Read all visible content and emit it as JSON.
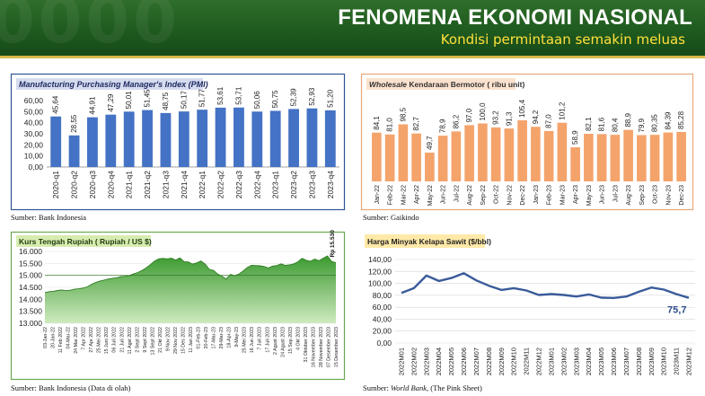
{
  "header": {
    "title": "FENOMENA EKONOMI NASIONAL",
    "subtitle": "Kondisi permintaan semakin meluas",
    "watermark": "0000"
  },
  "colors": {
    "header_green": "#1f5a1f",
    "gold": "#ffe03a",
    "pmi_bar": "#4472c4",
    "wholesale_bar": "#f4a36b",
    "kurs_fill": "#55b045",
    "cpo_line": "#3a5b9a"
  },
  "pmi": {
    "source_label": "Sumber:",
    "source_name": "Bank Indonesia"
  },
  "wholesale": {
    "source_label": "Sumber:",
    "source_name": "Gaikindo"
  },
  "kurs": {
    "source_label": "Sumber:",
    "source_name": "Bank Indonesia (Data di olah)"
  },
  "cpo": {
    "source_label": "Sumber:",
    "source_name_italic": "World Bank,",
    "source_name_rest": "(The Pink Sheet)"
  },
  "chart_data": [
    {
      "id": "pmi",
      "type": "bar",
      "title": "Manufacturing Purchasing Manager's Index (PMI)",
      "categories": [
        "2020-q1",
        "2020-q2",
        "2020-q3",
        "2020-q4",
        "2021-q1",
        "2021-q2",
        "2021-q3",
        "2021-q4",
        "2022-q1",
        "2022-q2",
        "2022-q3",
        "2022-q4",
        "2023-q1",
        "2023-q2",
        "2023-q3",
        "2023-q4"
      ],
      "values": [
        45.64,
        28.55,
        44.91,
        47.29,
        50.01,
        51.45,
        48.75,
        50.17,
        51.77,
        53.61,
        53.71,
        50.06,
        50.75,
        52.39,
        52.93,
        51.2
      ],
      "labels": [
        "45,64",
        "28,55",
        "44,91",
        "47,29",
        "50,01",
        "51,45",
        "48,75",
        "50,17",
        "51,77",
        "53,61",
        "53,71",
        "50,06",
        "50,75",
        "52,39",
        "52,93",
        "51,20"
      ],
      "ylim": [
        0,
        60
      ],
      "yticks": [
        "0,00",
        "10,00",
        "20,00",
        "30,00",
        "40,00",
        "50,00",
        "60,00"
      ],
      "grid": false
    },
    {
      "id": "wholesale",
      "type": "bar",
      "title_italic": "Wholesale",
      "title_rest": "Kendaraan Bermotor ( ribu unit)",
      "categories": [
        "Jan-22",
        "Feb-22",
        "Mar-22",
        "Apr-22",
        "May-22",
        "Jun-22",
        "Jul-22",
        "Aug-22",
        "Sep-22",
        "Oct-22",
        "Nov-22",
        "Dec-22",
        "Jan-23",
        "Feb-23",
        "Mar-23",
        "Apr-23",
        "May-23",
        "Jun-23",
        "Jul-23",
        "Aug-23",
        "Sep-23",
        "Oct-23",
        "Nov-23",
        "Dec-23"
      ],
      "values": [
        84.1,
        81.0,
        98.5,
        82.7,
        49.7,
        78.9,
        86.2,
        97.0,
        100.0,
        93.2,
        91.3,
        105.4,
        94.2,
        87.0,
        101.2,
        58.9,
        82.1,
        81.6,
        80.4,
        88.9,
        79.9,
        80.35,
        84.39,
        85.28
      ],
      "labels": [
        "84,1",
        "81,0",
        "98,5",
        "82,7",
        "49,7",
        "78,9",
        "86,2",
        "97,0",
        "100,0",
        "93,2",
        "91,3",
        "105,4",
        "94,2",
        "87,0",
        "101,2",
        "58,9",
        "82,1",
        "81,6",
        "80,4",
        "88,9",
        "79,9",
        "80,35",
        "84,39",
        "85,28"
      ],
      "grid": false
    },
    {
      "id": "kurs",
      "type": "area",
      "title": "Kurs Tengah Rupiah ( Rupiah / US $)",
      "ylim": [
        13000,
        16000
      ],
      "yticks": [
        "13.000",
        "13.500",
        "14.000",
        "14.500",
        "15.000",
        "15.500",
        "16.000"
      ],
      "x_labels": [
        "03-Jan-22",
        "20-Jan-22",
        "11 Feb 2022",
        "04-Mar-22",
        "24 Mar 2022",
        "7 Apr 2022",
        "27 Apr 2022",
        "25 Mei 2022",
        "15 Juni 2022",
        "06 Juli 2022",
        "21 Juli 2022",
        "11 Agst 2022",
        "2 Sept 2022",
        "9 Sept 2022",
        "13 Sept 2022",
        "21 Okt 2022",
        "9 Nov 2022",
        "29 Nov 2022",
        "15 Des 2022",
        "11 Jan 2023",
        "01-Feb-23",
        "20-Feb-23",
        "17-Mar-23",
        "29-Mar-23",
        "18-Apr-23",
        "9-May-23",
        "25 Mei 2023",
        "16 Jun 2023",
        "7 Juli 2023",
        "17 Juli 2023",
        "2 Agust 2023",
        "24 Agust 2023",
        "15 Sep 2023",
        "4 Okt 2023",
        "31 Oktober 2023",
        "16 November 2023",
        "28 November 2023",
        "07 Desember 2023",
        "15 Desember 2023"
      ],
      "values": [
        14280,
        14320,
        14330,
        14370,
        14390,
        14360,
        14380,
        14420,
        14440,
        14470,
        14520,
        14620,
        14700,
        14760,
        14800,
        14850,
        14880,
        14900,
        14950,
        14960,
        14990,
        15060,
        15120,
        15200,
        15310,
        15450,
        15600,
        15690,
        15710,
        15690,
        15720,
        15640,
        15730,
        15570,
        15560,
        15470,
        15520,
        15600,
        15470,
        15250,
        15210,
        15050,
        14960,
        14850,
        15040,
        14990,
        15050,
        15180,
        15330,
        15420,
        15410,
        15400,
        15370,
        15310,
        15390,
        15410,
        15480,
        15420,
        15440,
        15480,
        15570,
        15710,
        15630,
        15590,
        15680,
        15610,
        15720,
        15810,
        15580,
        15530
      ],
      "last_label": "Rp 15.530",
      "reference_line": 15000,
      "grid": true
    },
    {
      "id": "cpo",
      "type": "line",
      "title": "Harga Minyak Kelapa Sawit ($/bbl)",
      "categories": [
        "2022M01",
        "2022M02",
        "2022M03",
        "2022M04",
        "2022M05",
        "2022M06",
        "2022M07",
        "2022M08",
        "2022M09",
        "2022M10",
        "2022M11",
        "2022M12",
        "2023M01",
        "2023M02",
        "2023M03",
        "2023M04",
        "2023M05",
        "2023M06",
        "2023M07",
        "2023M08",
        "2023M09",
        "2023M10",
        "2023M11",
        "2023M12"
      ],
      "values": [
        84.0,
        92.0,
        113.0,
        104.0,
        109.0,
        117.0,
        105.0,
        96.0,
        89.0,
        92.0,
        88.0,
        80.5,
        82.0,
        80.5,
        78.0,
        81.5,
        76.0,
        75.5,
        78.0,
        86.0,
        93.0,
        89.5,
        82.0,
        75.7
      ],
      "ylim": [
        0,
        140
      ],
      "yticks": [
        "0,00",
        "20,00",
        "40,00",
        "60,00",
        "80,00",
        "100,00",
        "120,00",
        "140,00"
      ],
      "last_label": "75,7",
      "grid": true
    }
  ]
}
